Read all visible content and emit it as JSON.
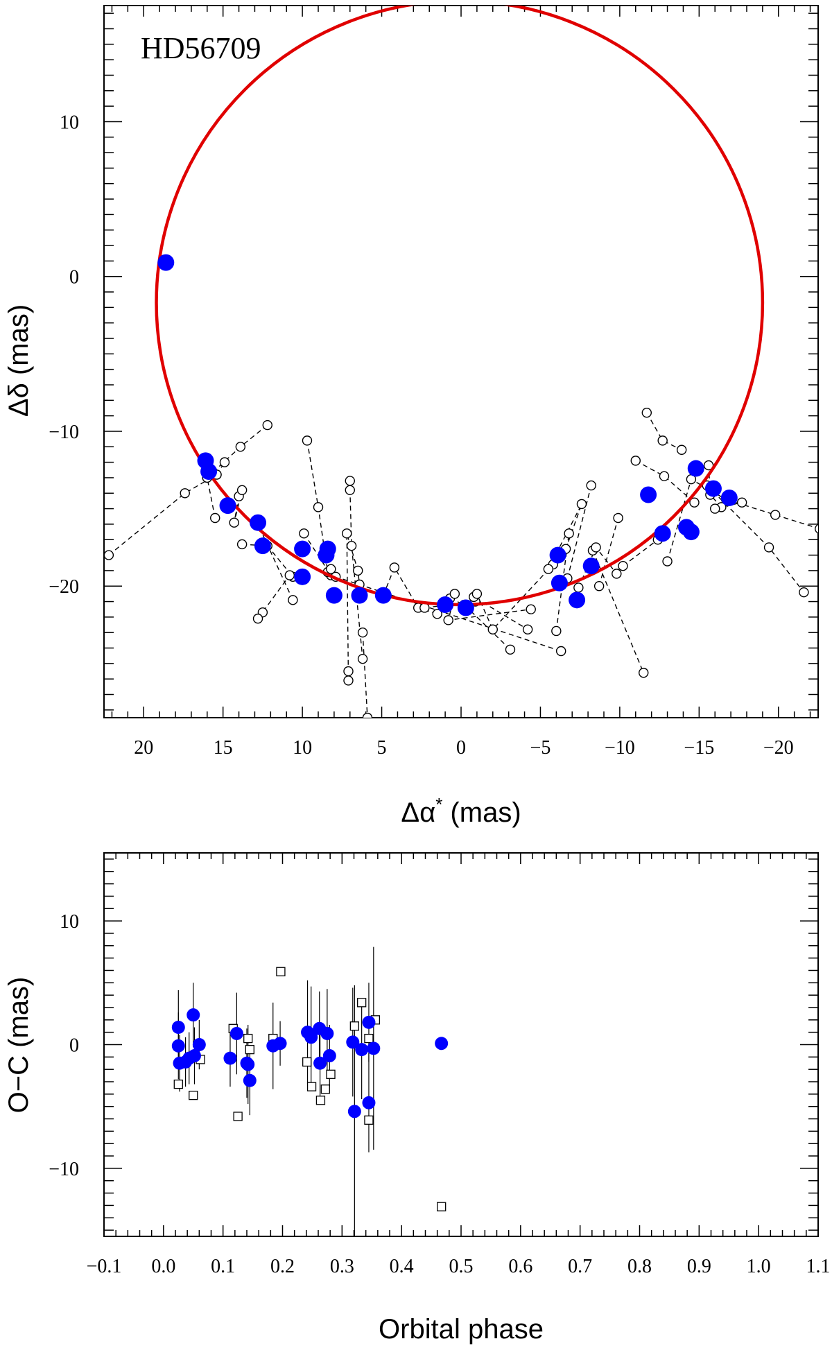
{
  "chart_data": [
    {
      "type": "scatter",
      "title": "HD56709",
      "xlabel_base": "Δα",
      "xlabel_sup": "*",
      "xlabel_unit": " (mas)",
      "ylabel": "Δδ (mas)",
      "xlim": [
        22.5,
        -22.5
      ],
      "ylim": [
        -28.5,
        17.5
      ],
      "xticks": [
        20,
        15,
        10,
        5,
        0,
        -5,
        -10,
        -15,
        -20
      ],
      "yticks": [
        10,
        0,
        -10,
        -20
      ],
      "orbit": {
        "center": [
          0.1,
          -1.7
        ],
        "rx": 19.1,
        "ry": 19.5,
        "color": "#e00000"
      },
      "series": [
        {
          "name": "fitted positions",
          "color": "#0000ff",
          "points": [
            [
              18.6,
              0.9
            ],
            [
              16.1,
              -11.9
            ],
            [
              15.9,
              -12.6
            ],
            [
              14.7,
              -14.8
            ],
            [
              12.8,
              -15.9
            ],
            [
              12.5,
              -17.4
            ],
            [
              10.0,
              -17.6
            ],
            [
              10.0,
              -19.4
            ],
            [
              8.4,
              -17.6
            ],
            [
              8.5,
              -18.0
            ],
            [
              8.0,
              -20.6
            ],
            [
              6.4,
              -20.6
            ],
            [
              4.9,
              -20.6
            ],
            [
              1.0,
              -21.2
            ],
            [
              -0.3,
              -21.4
            ],
            [
              -6.1,
              -18.0
            ],
            [
              -6.2,
              -19.8
            ],
            [
              -7.3,
              -20.9
            ],
            [
              -8.2,
              -18.7
            ],
            [
              -11.8,
              -14.1
            ],
            [
              -12.7,
              -16.6
            ],
            [
              -14.2,
              -16.2
            ],
            [
              -14.5,
              -16.5
            ],
            [
              -14.8,
              -12.4
            ],
            [
              -15.9,
              -13.7
            ],
            [
              -16.9,
              -14.3
            ]
          ]
        },
        {
          "name": "individual scan measurements",
          "color": "#000000",
          "segments": [
            [
              [
                22.2,
                -18.0
              ],
              [
                17.4,
                -14.0
              ],
              [
                15.4,
                -12.8
              ]
            ],
            [
              [
                15.4,
                -12.8
              ],
              [
                14.9,
                -12.0
              ]
            ],
            [
              [
                15.5,
                -15.6
              ],
              [
                16.0,
                -13.0
              ]
            ],
            [
              [
                16.0,
                -13.0
              ],
              [
                13.9,
                -11.0
              ],
              [
                12.2,
                -9.6
              ]
            ],
            [
              [
                14.0,
                -14.2
              ],
              [
                14.3,
                -15.9
              ],
              [
                13.8,
                -13.8
              ]
            ],
            [
              [
                13.8,
                -17.3
              ],
              [
                12.2,
                -17.4
              ],
              [
                10.6,
                -19.4
              ]
            ],
            [
              [
                12.5,
                -21.7
              ],
              [
                12.8,
                -22.1
              ],
              [
                10.8,
                -19.3
              ]
            ],
            [
              [
                10.6,
                -20.9
              ],
              [
                12.8,
                -16.0
              ]
            ],
            [
              [
                9.9,
                -16.6
              ],
              [
                8.2,
                -19.3
              ]
            ],
            [
              [
                9.7,
                -10.6
              ],
              [
                9.0,
                -14.9
              ],
              [
                8.4,
                -19.1
              ]
            ],
            [
              [
                7.0,
                -13.2
              ],
              [
                7.0,
                -13.8
              ],
              [
                6.9,
                -17.4
              ],
              [
                6.2,
                -24.7
              ]
            ],
            [
              [
                7.1,
                -25.5
              ],
              [
                7.1,
                -26.1
              ],
              [
                7.2,
                -16.6
              ],
              [
                6.5,
                -19.0
              ],
              [
                6.4,
                -19.9
              ]
            ],
            [
              [
                6.2,
                -23.0
              ],
              [
                5.9,
                -28.5
              ]
            ],
            [
              [
                8.2,
                -18.9
              ],
              [
                7.9,
                -19.4
              ],
              [
                -6.3,
                -24.2
              ]
            ],
            [
              [
                4.9,
                -20.6
              ],
              [
                4.2,
                -18.8
              ],
              [
                2.7,
                -21.4
              ],
              [
                1.5,
                -21.8
              ]
            ],
            [
              [
                2.3,
                -21.4
              ],
              [
                -0.9,
                -21.0
              ],
              [
                -0.8,
                -20.7
              ],
              [
                -4.2,
                -22.8
              ]
            ],
            [
              [
                0.7,
                -20.8
              ],
              [
                -0.2,
                -21.2
              ],
              [
                -3.1,
                -24.1
              ]
            ],
            [
              [
                0.4,
                -20.5
              ],
              [
                0.8,
                -22.2
              ],
              [
                -4.4,
                -21.5
              ]
            ],
            [
              [
                -1.0,
                -20.5
              ],
              [
                -2.0,
                -22.8
              ],
              [
                -5.8,
                -18.6
              ]
            ],
            [
              [
                -5.5,
                -18.9
              ],
              [
                -7.6,
                -14.7
              ],
              [
                -6.6,
                -17.6
              ]
            ],
            [
              [
                -6.0,
                -22.9
              ],
              [
                -6.8,
                -16.6
              ]
            ],
            [
              [
                -6.7,
                -19.5
              ],
              [
                -8.2,
                -13.5
              ]
            ],
            [
              [
                -8.3,
                -17.7
              ],
              [
                -11.5,
                -25.6
              ]
            ],
            [
              [
                -8.7,
                -20.0
              ],
              [
                -9.9,
                -15.6
              ]
            ],
            [
              [
                -7.4,
                -20.1
              ],
              [
                -8.5,
                -17.5
              ],
              [
                -9.8,
                -19.2
              ]
            ],
            [
              [
                -10.2,
                -18.7
              ],
              [
                -12.4,
                -17.0
              ]
            ],
            [
              [
                -11.0,
                -11.9
              ],
              [
                -12.8,
                -12.9
              ],
              [
                -14.7,
                -14.6
              ]
            ],
            [
              [
                -11.7,
                -8.8
              ],
              [
                -12.7,
                -10.6
              ],
              [
                -13.9,
                -11.2
              ]
            ],
            [
              [
                -15.6,
                -12.2
              ],
              [
                -15.7,
                -14.1
              ],
              [
                -16.4,
                -14.9
              ],
              [
                -17.7,
                -14.6
              ]
            ],
            [
              [
                -16.0,
                -15.0
              ],
              [
                -16.7,
                -14.4
              ],
              [
                -19.8,
                -15.4
              ],
              [
                -22.6,
                -16.3
              ]
            ],
            [
              [
                -13.0,
                -18.4
              ],
              [
                -14.5,
                -13.1
              ],
              [
                -16.7,
                -14.4
              ]
            ],
            [
              [
                -15.5,
                -13.5
              ],
              [
                -19.4,
                -17.5
              ],
              [
                -21.6,
                -20.4
              ]
            ]
          ]
        }
      ]
    },
    {
      "type": "scatter",
      "xlabel": "Orbital phase",
      "ylabel": "O−C (mas)",
      "xlim": [
        -0.1,
        1.1
      ],
      "ylim": [
        -15.5,
        15.5
      ],
      "xticks": [
        -0.1,
        0.0,
        0.1,
        0.2,
        0.3,
        0.4,
        0.5,
        0.6,
        0.7,
        0.8,
        0.9,
        1.0,
        1.1
      ],
      "yticks": [
        10,
        0,
        -10
      ],
      "series": [
        {
          "name": "residuals",
          "color": "#0000ff",
          "points": [
            [
              0.025,
              1.4,
              3.0
            ],
            [
              0.025,
              -0.1,
              2.7
            ],
            [
              0.027,
              -1.5,
              2.3
            ],
            [
              0.037,
              -1.4,
              2.0
            ],
            [
              0.043,
              -1.1,
              2.1
            ],
            [
              0.05,
              2.4,
              2.6
            ],
            [
              0.052,
              -0.9,
              2.3
            ],
            [
              0.06,
              0.0,
              2.0
            ],
            [
              0.112,
              -1.1,
              2.3
            ],
            [
              0.123,
              0.9,
              3.3
            ],
            [
              0.14,
              -1.5,
              2.8
            ],
            [
              0.142,
              -1.6,
              3.2
            ],
            [
              0.145,
              -2.9,
              2.8
            ],
            [
              0.184,
              -0.1,
              3.5
            ],
            [
              0.196,
              0.1,
              1.8
            ],
            [
              0.242,
              1.0,
              4.2
            ],
            [
              0.248,
              0.6,
              4.1
            ],
            [
              0.262,
              1.3,
              3.0
            ],
            [
              0.263,
              -1.5,
              3.2
            ],
            [
              0.275,
              0.9,
              3.6
            ],
            [
              0.279,
              -0.9,
              2.5
            ],
            [
              0.318,
              0.2,
              4.4
            ],
            [
              0.321,
              -5.4,
              10.2
            ],
            [
              0.333,
              -0.4,
              4.0
            ],
            [
              0.345,
              1.8,
              3.2
            ],
            [
              0.345,
              -4.7,
              4.0
            ],
            [
              0.353,
              -0.3,
              8.2
            ],
            [
              0.467,
              0.1,
              0.0
            ]
          ]
        },
        {
          "name": "scan residuals",
          "color": "#000000",
          "points": [
            [
              0.025,
              -3.2
            ],
            [
              0.05,
              -4.1
            ],
            [
              0.062,
              -1.2
            ],
            [
              0.117,
              1.3
            ],
            [
              0.125,
              -5.8
            ],
            [
              0.142,
              0.5
            ],
            [
              0.145,
              -0.4
            ],
            [
              0.184,
              0.5
            ],
            [
              0.197,
              5.9
            ],
            [
              0.241,
              -1.4
            ],
            [
              0.249,
              -3.4
            ],
            [
              0.264,
              -4.5
            ],
            [
              0.272,
              -3.6
            ],
            [
              0.281,
              -2.4
            ],
            [
              0.321,
              1.5
            ],
            [
              0.333,
              3.4
            ],
            [
              0.345,
              0.5
            ],
            [
              0.345,
              -6.1
            ],
            [
              0.356,
              2.0
            ],
            [
              0.467,
              -13.1
            ]
          ]
        }
      ]
    }
  ]
}
